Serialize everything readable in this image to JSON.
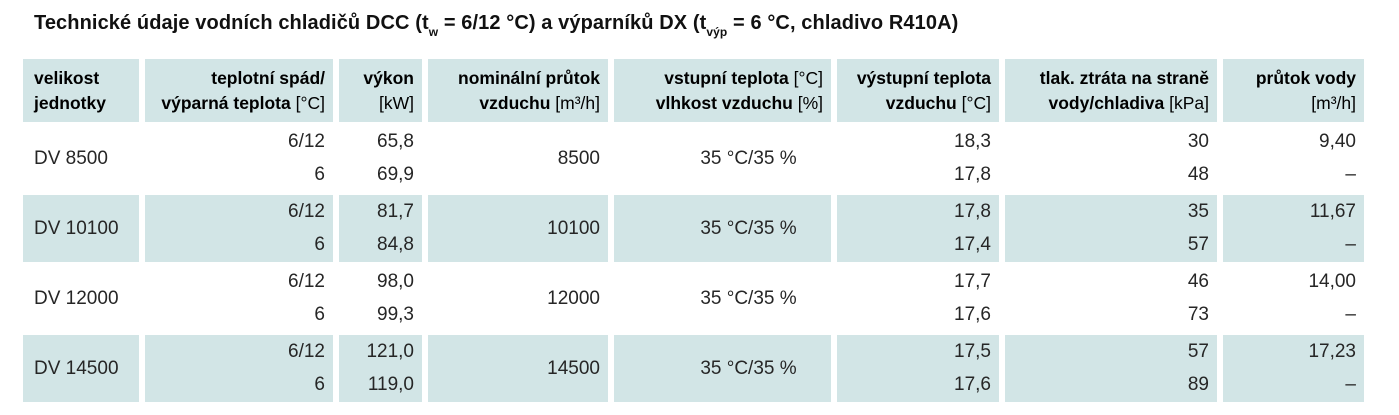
{
  "title": {
    "part1": "Technické údaje vodních chladičů DCC (t",
    "sub_w": "w",
    "part2": " = 6/12 °C) a výparníků DX (t",
    "sub_vyp": "výp",
    "part3": " = 6 °C, chladivo R410A)"
  },
  "colors": {
    "shaded_bg": "#d2e5e6",
    "header_text": "#000000",
    "value_text": "#262626"
  },
  "table": {
    "header": [
      {
        "line1": "velikost",
        "line1_unit": "",
        "line2": "jednotky",
        "line2_unit": ""
      },
      {
        "line1": "teplotní spád/",
        "line1_unit": "",
        "line2": "výparná teplota",
        "line2_unit": "[°C]"
      },
      {
        "line1": "výkon",
        "line1_unit": "",
        "line2": "",
        "line2_unit": "[kW]"
      },
      {
        "line1": "nominální průtok",
        "line1_unit": "",
        "line2": "vzduchu",
        "line2_unit": "[m³/h]"
      },
      {
        "line1": "vstupní teplota",
        "line1_unit": "[°C]",
        "line2": "vlhkost vzduchu",
        "line2_unit": "[%]"
      },
      {
        "line1": "výstupní teplota",
        "line1_unit": "",
        "line2": "vzduchu",
        "line2_unit": "[°C]"
      },
      {
        "line1": "tlak. ztráta na straně",
        "line1_unit": "",
        "line2": "vody/chladiva",
        "line2_unit": "[kPa]"
      },
      {
        "line1": "průtok vody",
        "line1_unit": "",
        "line2": "",
        "line2_unit": "[m³/h]"
      }
    ],
    "rows": [
      {
        "unit": "DV 8500",
        "temp_grad": [
          "6/12",
          "6"
        ],
        "power": [
          "65,8",
          "69,9"
        ],
        "airflow": "8500",
        "inlet": "35 °C/35 %",
        "outlet": [
          "18,3",
          "17,8"
        ],
        "pressure": [
          "30",
          "48"
        ],
        "waterflow": [
          "9,40",
          "–"
        ]
      },
      {
        "unit": "DV 10100",
        "temp_grad": [
          "6/12",
          "6"
        ],
        "power": [
          "81,7",
          "84,8"
        ],
        "airflow": "10100",
        "inlet": "35 °C/35 %",
        "outlet": [
          "17,8",
          "17,4"
        ],
        "pressure": [
          "35",
          "57"
        ],
        "waterflow": [
          "11,67",
          "–"
        ]
      },
      {
        "unit": "DV 12000",
        "temp_grad": [
          "6/12",
          "6"
        ],
        "power": [
          "98,0",
          "99,3"
        ],
        "airflow": "12000",
        "inlet": "35 °C/35 %",
        "outlet": [
          "17,7",
          "17,6"
        ],
        "pressure": [
          "46",
          "73"
        ],
        "waterflow": [
          "14,00",
          "–"
        ]
      },
      {
        "unit": "DV 14500",
        "temp_grad": [
          "6/12",
          "6"
        ],
        "power": [
          "121,0",
          "119,0"
        ],
        "airflow": "14500",
        "inlet": "35 °C/35 %",
        "outlet": [
          "17,5",
          "17,6"
        ],
        "pressure": [
          "57",
          "89"
        ],
        "waterflow": [
          "17,23",
          "–"
        ]
      }
    ]
  }
}
